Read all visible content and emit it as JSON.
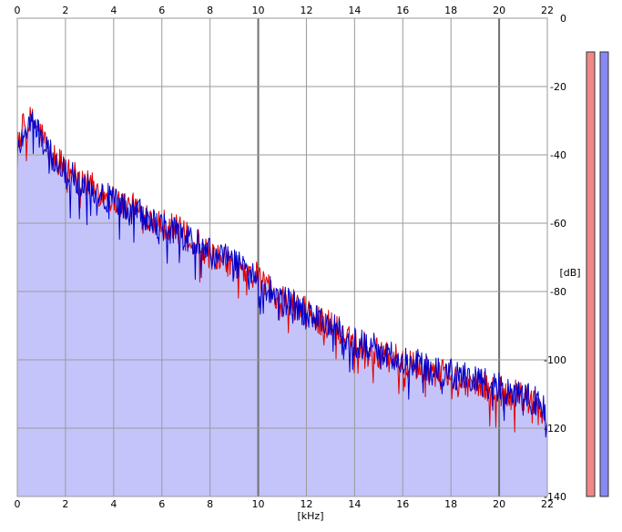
{
  "chart_data": {
    "type": "area",
    "title": "",
    "xlabel": "[kHz]",
    "ylabel": "[dB]",
    "xlim": [
      0,
      22
    ],
    "ylim": [
      -140,
      0
    ],
    "x_ticks": [
      0,
      2,
      4,
      6,
      8,
      10,
      12,
      14,
      16,
      18,
      20,
      22
    ],
    "y_ticks": [
      0,
      -20,
      -40,
      -60,
      -80,
      -100,
      -120,
      -140
    ],
    "grid": true,
    "legend": "none",
    "colors": {
      "plot_background": "#ffffff",
      "area_fill": "#c4c4fa",
      "grid": "#9a9a9a",
      "grid_major": "#707070",
      "left_channel": "#e00000",
      "right_channel": "#0000cc",
      "level_meter_left": "#f08888",
      "level_meter_right": "#8888f0"
    },
    "series": [
      {
        "color": "#e00000",
        "x": [
          0.0,
          0.25,
          0.5,
          0.75,
          1.0,
          1.25,
          1.5,
          1.75,
          2.0,
          2.5,
          3.0,
          3.5,
          4.0,
          4.5,
          5.0,
          5.5,
          6.0,
          6.5,
          7.0,
          7.5,
          8.0,
          8.5,
          9.0,
          9.5,
          10.0,
          10.5,
          11.0,
          11.5,
          12.0,
          12.5,
          13.0,
          13.5,
          14.0,
          14.5,
          15.0,
          15.5,
          16.0,
          16.5,
          17.0,
          17.5,
          18.0,
          18.5,
          19.0,
          19.5,
          20.0,
          20.5,
          21.0,
          21.5,
          22.0
        ],
        "values": [
          -35,
          -32,
          -30,
          -31,
          -34,
          -38,
          -40,
          -42,
          -44,
          -46,
          -49,
          -51,
          -53,
          -55,
          -56,
          -58,
          -60,
          -61,
          -64,
          -66,
          -69,
          -71,
          -72,
          -74,
          -76,
          -79,
          -82,
          -84,
          -86,
          -88,
          -90,
          -92,
          -94,
          -96,
          -98,
          -99,
          -101,
          -102,
          -103,
          -104,
          -105,
          -106,
          -107,
          -108,
          -109,
          -110,
          -111,
          -113,
          -118
        ]
      },
      {
        "color": "#0000cc",
        "x": [
          0.0,
          0.25,
          0.5,
          0.75,
          1.0,
          1.25,
          1.5,
          1.75,
          2.0,
          2.5,
          3.0,
          3.5,
          4.0,
          4.5,
          5.0,
          5.5,
          6.0,
          6.5,
          7.0,
          7.5,
          8.0,
          8.5,
          9.0,
          9.5,
          10.0,
          10.5,
          11.0,
          11.5,
          12.0,
          12.5,
          13.0,
          13.5,
          14.0,
          14.5,
          15.0,
          15.5,
          16.0,
          16.5,
          17.0,
          17.5,
          18.0,
          18.5,
          19.0,
          19.5,
          20.0,
          20.5,
          21.0,
          21.5,
          22.0
        ],
        "values": [
          -40,
          -33,
          -31,
          -32,
          -35,
          -39,
          -41,
          -43,
          -45,
          -47,
          -49,
          -52,
          -53,
          -56,
          -57,
          -59,
          -61,
          -62,
          -65,
          -66,
          -69,
          -70,
          -72,
          -74,
          -78,
          -80,
          -83,
          -84,
          -87,
          -88,
          -90,
          -93,
          -95,
          -96,
          -97,
          -99,
          -100,
          -101,
          -102,
          -103,
          -104,
          -105,
          -106,
          -107,
          -108,
          -109,
          -110,
          -112,
          -116
        ]
      }
    ],
    "level_meters": {
      "left": 1.0,
      "right": 1.0
    }
  }
}
